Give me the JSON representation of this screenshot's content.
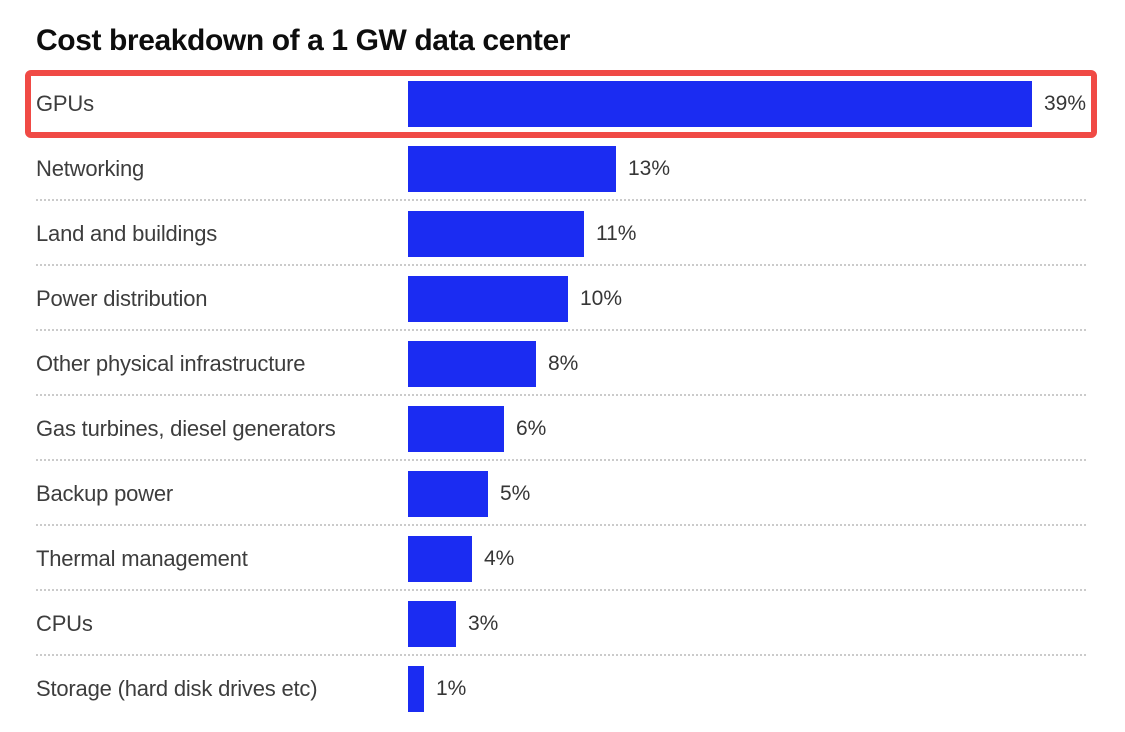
{
  "page_title": "Cost breakdown of a 1 GW data center",
  "chart_data": {
    "type": "bar",
    "orientation": "horizontal",
    "title": "Cost breakdown of a 1 GW data center",
    "categories": [
      "GPUs",
      "Networking",
      "Land and buildings",
      "Power distribution",
      "Other physical infrastructure",
      "Gas turbines, diesel generators",
      "Backup power",
      "Thermal management",
      "CPUs",
      "Storage (hard disk drives etc)"
    ],
    "values": [
      39,
      13,
      11,
      10,
      8,
      6,
      5,
      4,
      3,
      1
    ],
    "value_labels": [
      "39%",
      "13%",
      "11%",
      "10%",
      "8%",
      "6%",
      "5%",
      "4%",
      "3%",
      "1%"
    ],
    "unit": "%",
    "xlim": [
      0,
      39
    ],
    "grid": "dotted-row-separators",
    "legend": "none",
    "highlight": {
      "category": "GPUs",
      "style": "red-outline-box"
    },
    "colors": {
      "bar": "#1b2cf2",
      "highlight_border": "#f04a45",
      "title_text": "#0d0d0d",
      "label_text": "#3d3d3d",
      "value_text": "#363636",
      "separator": "#cbcbcb",
      "background": "#ffffff"
    }
  }
}
